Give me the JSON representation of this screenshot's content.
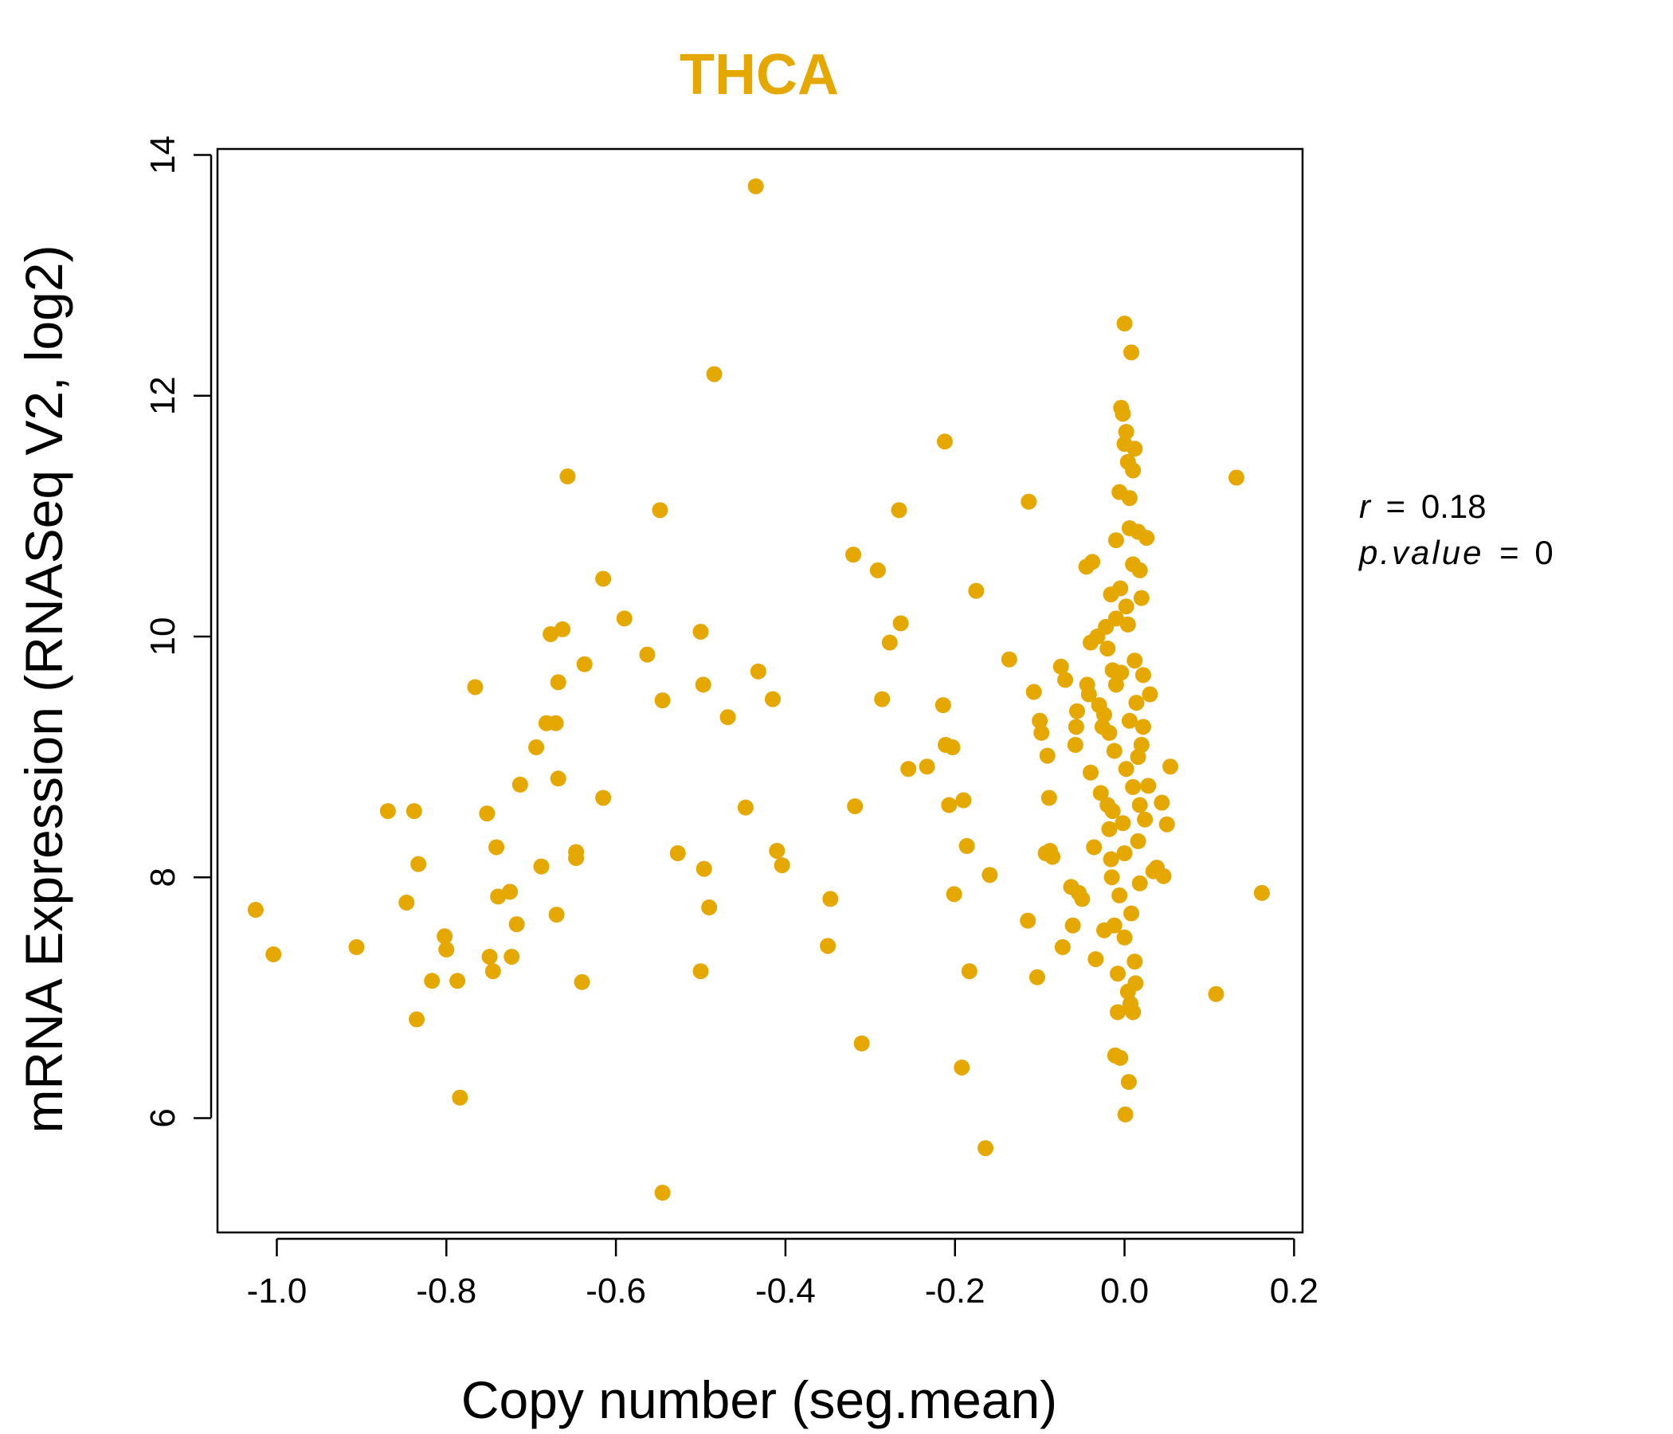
{
  "chart_data": {
    "type": "scatter",
    "title": "THCA",
    "xlabel": "Copy number (seg.mean)",
    "ylabel": "mRNA Expression (RNASeq V2, log2)",
    "xlim": [
      -1.07,
      0.21
    ],
    "ylim": [
      5.05,
      14.05
    ],
    "x_ticks": [
      -1.0,
      -0.8,
      -0.6,
      -0.4,
      -0.2,
      0.0,
      0.2
    ],
    "x_tick_labels": [
      "-1.0",
      "-0.8",
      "-0.6",
      "-0.4",
      "-0.2",
      "0.0",
      "0.2"
    ],
    "y_ticks": [
      6,
      8,
      10,
      12,
      14
    ],
    "y_tick_labels": [
      "6",
      "8",
      "10",
      "12",
      "14"
    ],
    "grid": false,
    "point_color": "#E5A800",
    "stats": {
      "r_label": "r",
      "r_value": "0.18",
      "p_label": "p.value",
      "p_value": "0",
      "equals": "="
    },
    "points": [
      [
        -1.025,
        7.73
      ],
      [
        -1.004,
        7.36
      ],
      [
        -0.906,
        7.42
      ],
      [
        -0.869,
        8.55
      ],
      [
        -0.847,
        7.79
      ],
      [
        -0.838,
        8.55
      ],
      [
        -0.835,
        6.82
      ],
      [
        -0.833,
        8.11
      ],
      [
        -0.817,
        7.14
      ],
      [
        -0.802,
        7.51
      ],
      [
        -0.8,
        7.4
      ],
      [
        -0.787,
        7.14
      ],
      [
        -0.784,
        6.17
      ],
      [
        -0.766,
        9.58
      ],
      [
        -0.752,
        8.53
      ],
      [
        -0.749,
        7.34
      ],
      [
        -0.745,
        7.22
      ],
      [
        -0.741,
        8.25
      ],
      [
        -0.739,
        7.84
      ],
      [
        -0.725,
        7.88
      ],
      [
        -0.723,
        7.34
      ],
      [
        -0.717,
        7.61
      ],
      [
        -0.713,
        8.77
      ],
      [
        -0.694,
        9.08
      ],
      [
        -0.688,
        8.09
      ],
      [
        -0.682,
        9.28
      ],
      [
        -0.677,
        10.02
      ],
      [
        -0.671,
        9.28
      ],
      [
        -0.67,
        7.69
      ],
      [
        -0.668,
        8.82
      ],
      [
        -0.668,
        9.62
      ],
      [
        -0.663,
        10.06
      ],
      [
        -0.657,
        11.33
      ],
      [
        -0.647,
        8.21
      ],
      [
        -0.647,
        8.16
      ],
      [
        -0.64,
        7.13
      ],
      [
        -0.637,
        9.77
      ],
      [
        -0.615,
        10.48
      ],
      [
        -0.615,
        8.66
      ],
      [
        -0.59,
        10.15
      ],
      [
        -0.563,
        9.85
      ],
      [
        -0.548,
        11.05
      ],
      [
        -0.545,
        9.47
      ],
      [
        -0.545,
        5.38
      ],
      [
        -0.527,
        8.2
      ],
      [
        -0.5,
        10.04
      ],
      [
        -0.5,
        7.22
      ],
      [
        -0.497,
        9.6
      ],
      [
        -0.496,
        8.07
      ],
      [
        -0.49,
        7.75
      ],
      [
        -0.484,
        12.18
      ],
      [
        -0.468,
        9.33
      ],
      [
        -0.447,
        8.58
      ],
      [
        -0.435,
        13.74
      ],
      [
        -0.432,
        9.71
      ],
      [
        -0.415,
        9.48
      ],
      [
        -0.41,
        8.22
      ],
      [
        -0.404,
        8.1
      ],
      [
        -0.35,
        7.43
      ],
      [
        -0.347,
        7.82
      ],
      [
        -0.32,
        10.68
      ],
      [
        -0.318,
        8.59
      ],
      [
        -0.31,
        6.62
      ],
      [
        -0.291,
        10.55
      ],
      [
        -0.286,
        9.48
      ],
      [
        -0.277,
        9.95
      ],
      [
        -0.266,
        11.05
      ],
      [
        -0.264,
        10.11
      ],
      [
        -0.255,
        8.9
      ],
      [
        -0.233,
        8.92
      ],
      [
        -0.214,
        9.43
      ],
      [
        -0.212,
        11.62
      ],
      [
        -0.211,
        9.1
      ],
      [
        -0.207,
        8.6
      ],
      [
        -0.203,
        9.08
      ],
      [
        -0.201,
        7.86
      ],
      [
        -0.192,
        6.42
      ],
      [
        -0.19,
        8.64
      ],
      [
        -0.186,
        8.26
      ],
      [
        -0.183,
        7.22
      ],
      [
        -0.175,
        10.38
      ],
      [
        -0.164,
        5.75
      ],
      [
        -0.159,
        8.02
      ],
      [
        -0.136,
        9.81
      ],
      [
        -0.114,
        7.64
      ],
      [
        -0.113,
        11.12
      ],
      [
        -0.107,
        9.54
      ],
      [
        -0.103,
        7.17
      ],
      [
        -0.1,
        9.3
      ],
      [
        -0.098,
        9.2
      ],
      [
        -0.093,
        8.2
      ],
      [
        -0.091,
        9.01
      ],
      [
        -0.089,
        8.66
      ],
      [
        -0.088,
        8.22
      ],
      [
        -0.085,
        8.17
      ],
      [
        -0.075,
        9.75
      ],
      [
        -0.073,
        7.42
      ],
      [
        -0.07,
        9.64
      ],
      [
        -0.063,
        7.92
      ],
      [
        -0.061,
        7.6
      ],
      [
        -0.058,
        9.1
      ],
      [
        -0.057,
        9.25
      ],
      [
        -0.056,
        9.38
      ],
      [
        -0.054,
        7.87
      ],
      [
        -0.05,
        7.82
      ],
      [
        -0.045,
        10.58
      ],
      [
        -0.044,
        9.6
      ],
      [
        -0.042,
        9.52
      ],
      [
        -0.04,
        9.95
      ],
      [
        -0.04,
        8.87
      ],
      [
        -0.038,
        10.62
      ],
      [
        -0.036,
        8.25
      ],
      [
        -0.034,
        7.32
      ],
      [
        -0.032,
        10.0
      ],
      [
        -0.03,
        9.43
      ],
      [
        -0.028,
        8.7
      ],
      [
        -0.026,
        9.25
      ],
      [
        -0.024,
        7.56
      ],
      [
        -0.022,
        10.08
      ],
      [
        -0.02,
        9.9
      ],
      [
        -0.018,
        8.4
      ],
      [
        -0.016,
        10.35
      ],
      [
        -0.014,
        9.72
      ],
      [
        -0.012,
        7.6
      ],
      [
        -0.01,
        10.8
      ],
      [
        -0.008,
        6.88
      ],
      [
        -0.006,
        11.2
      ],
      [
        -0.004,
        11.9
      ],
      [
        -0.002,
        11.85
      ],
      [
        0.0,
        11.6
      ],
      [
        0.0,
        12.6
      ],
      [
        0.002,
        11.7
      ],
      [
        0.004,
        11.45
      ],
      [
        0.006,
        11.15
      ],
      [
        0.008,
        12.36
      ],
      [
        0.01,
        11.38
      ],
      [
        0.012,
        11.56
      ],
      [
        -0.011,
        6.52
      ],
      [
        -0.005,
        6.5
      ],
      [
        0.001,
        6.03
      ],
      [
        0.005,
        6.3
      ],
      [
        0.007,
        6.95
      ],
      [
        0.01,
        6.88
      ],
      [
        0.013,
        7.12
      ],
      [
        0.016,
        10.87
      ],
      [
        0.018,
        10.55
      ],
      [
        0.02,
        10.32
      ],
      [
        0.022,
        9.68
      ],
      [
        0.024,
        8.48
      ],
      [
        0.026,
        10.82
      ],
      [
        0.028,
        8.76
      ],
      [
        0.03,
        9.52
      ],
      [
        0.034,
        8.05
      ],
      [
        0.038,
        8.08
      ],
      [
        0.044,
        8.62
      ],
      [
        0.046,
        8.01
      ],
      [
        0.05,
        8.44
      ],
      [
        0.054,
        8.92
      ],
      [
        0.132,
        11.32
      ],
      [
        0.108,
        7.03
      ],
      [
        0.162,
        7.87
      ],
      [
        -0.015,
        8.0
      ],
      [
        -0.01,
        9.6
      ],
      [
        -0.005,
        10.4
      ],
      [
        0.002,
        8.9
      ],
      [
        0.006,
        9.3
      ],
      [
        0.012,
        9.8
      ],
      [
        0.016,
        8.3
      ],
      [
        0.02,
        9.1
      ],
      [
        -0.02,
        8.6
      ],
      [
        -0.012,
        9.05
      ],
      [
        -0.002,
        8.45
      ],
      [
        0.004,
        10.1
      ],
      [
        0.01,
        8.75
      ],
      [
        0.014,
        9.45
      ],
      [
        0.018,
        7.95
      ],
      [
        -0.016,
        8.15
      ],
      [
        -0.006,
        7.85
      ],
      [
        0.0,
        7.5
      ],
      [
        0.008,
        7.7
      ],
      [
        0.012,
        7.3
      ],
      [
        -0.008,
        7.2
      ],
      [
        0.004,
        7.05
      ],
      [
        -0.018,
        9.2
      ],
      [
        -0.004,
        9.7
      ],
      [
        0.002,
        10.25
      ],
      [
        0.01,
        10.6
      ],
      [
        0.006,
        10.9
      ],
      [
        -0.01,
        10.15
      ],
      [
        0.016,
        9.0
      ],
      [
        -0.014,
        8.55
      ],
      [
        0.0,
        8.2
      ],
      [
        0.018,
        8.6
      ],
      [
        -0.024,
        9.35
      ],
      [
        0.022,
        9.25
      ]
    ]
  }
}
